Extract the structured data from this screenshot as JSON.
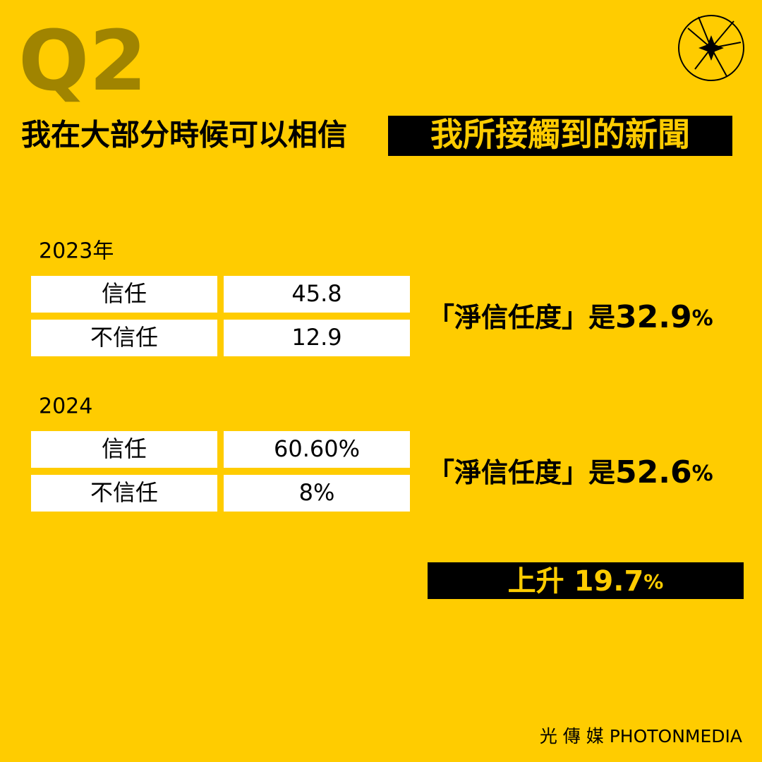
{
  "header": {
    "tag": "Q2",
    "title": "我在大部分時候可以相信",
    "title_highlight": "我所接觸到的新聞"
  },
  "sections": [
    {
      "year": "2023年",
      "rows": [
        [
          "信任",
          "45.8"
        ],
        [
          "不信任",
          "12.9"
        ]
      ],
      "summary_prefix": "「淨信任度」是",
      "summary_value": "32.9",
      "summary_unit": "%"
    },
    {
      "year": "2024",
      "rows": [
        [
          "信任",
          "60.60%"
        ],
        [
          "不信任",
          "8%"
        ]
      ],
      "summary_prefix": "「淨信任度」是",
      "summary_value": "52.6",
      "summary_unit": "%"
    }
  ],
  "change": {
    "label": "上升",
    "value": "19.7",
    "unit": "%"
  },
  "footer": {
    "brand_cn": "光 傳 媒",
    "brand_en": "PHOTONMEDIA"
  }
}
